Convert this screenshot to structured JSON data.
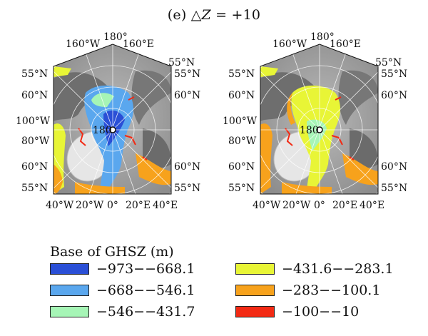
{
  "figure": {
    "title_prefix": "(e) △",
    "title_var": "Z",
    "title_suffix": " = +10"
  },
  "maps": [
    {
      "id": "left",
      "top_labels": [
        "180°",
        "160°W",
        "160°E",
        "55°N"
      ],
      "left_labels": [
        "55°N",
        "60°N",
        "100°W",
        "80°W",
        "60°N",
        "55°N"
      ],
      "right_labels": [
        "55°N",
        "60°N",
        "60°N",
        "55°N"
      ],
      "bottom_labels": [
        "40°W",
        "20°W",
        "0°",
        "20°E",
        "40°E"
      ],
      "pole_label": "180"
    },
    {
      "id": "right",
      "top_labels": [
        "180°",
        "160°W",
        "160°E",
        "55°N"
      ],
      "left_labels": [
        "55°N",
        "60°N",
        "100°W",
        "80°W",
        "60°N",
        "55°N"
      ],
      "right_labels": [
        "55°N",
        "60°N",
        "60°N",
        "55°N"
      ],
      "bottom_labels": [
        "40°W",
        "20°W",
        "0°",
        "20°E",
        "40°E"
      ],
      "pole_label": "180"
    }
  ],
  "legend": {
    "title": "Base of GHSZ (m)",
    "items": [
      {
        "label": "−973−−668.1",
        "color": "#2a4fd6"
      },
      {
        "label": "−668−−546.1",
        "color": "#5aa7ee"
      },
      {
        "label": "−546−−431.7",
        "color": "#a6f5b6"
      },
      {
        "label": "−431.6−−283.1",
        "color": "#e8f536"
      },
      {
        "label": "−283−−100.1",
        "color": "#f7a21c"
      },
      {
        "label": "−100−−10",
        "color": "#f22a14"
      }
    ]
  }
}
